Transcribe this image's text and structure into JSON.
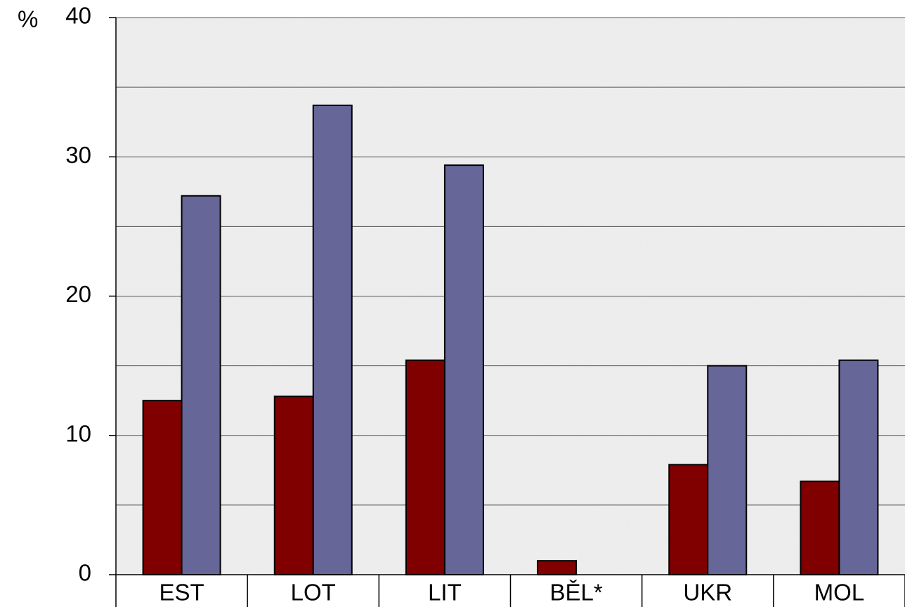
{
  "chart_data": {
    "type": "bar",
    "y_label": "%",
    "categories": [
      "EST",
      "LOT",
      "LIT",
      "BĚL*",
      "UKR",
      "MOL"
    ],
    "series": [
      {
        "color": "#800000",
        "values": [
          12.5,
          12.8,
          15.4,
          1.0,
          7.9,
          6.7
        ]
      },
      {
        "color": "#666699",
        "values": [
          27.2,
          33.7,
          29.4,
          null,
          15.0,
          15.4
        ]
      }
    ],
    "ylim": [
      0,
      40
    ],
    "yticks": [
      0,
      10,
      20,
      30,
      40
    ],
    "minor_yticks": [
      5,
      15,
      25,
      35
    ],
    "grid": true
  }
}
